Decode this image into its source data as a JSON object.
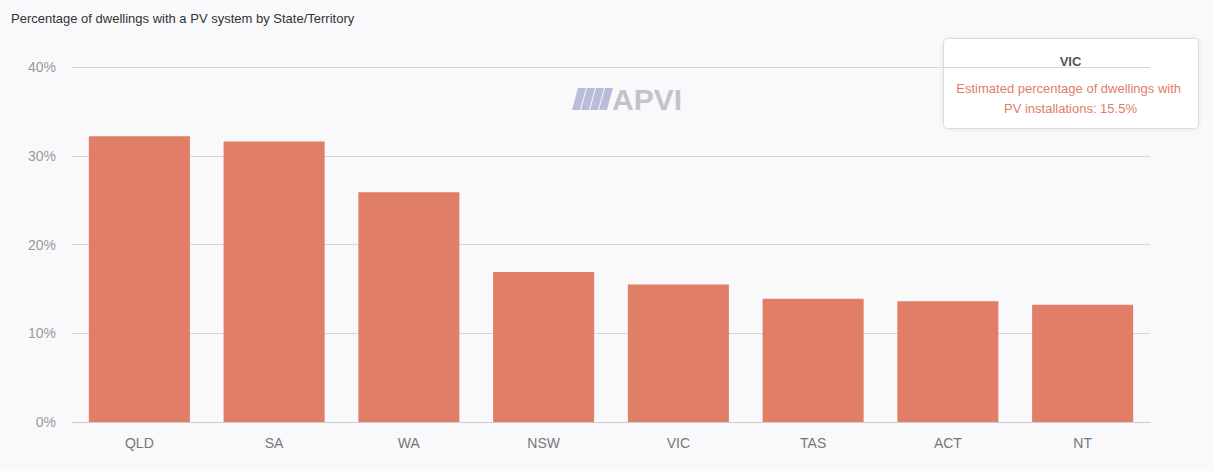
{
  "chart_data": {
    "type": "bar",
    "title": "Percentage of dwellings with a PV system by State/Territory",
    "categories": [
      "QLD",
      "SA",
      "WA",
      "NSW",
      "VIC",
      "TAS",
      "ACT",
      "NT"
    ],
    "values": [
      32.2,
      31.6,
      25.9,
      16.9,
      15.5,
      13.9,
      13.6,
      13.2
    ],
    "color": "#e07e67",
    "ylim": [
      0,
      40
    ],
    "yticks": [
      {
        "value": 0,
        "label": "0%"
      },
      {
        "value": 10,
        "label": "10%"
      },
      {
        "value": 20,
        "label": "20%"
      },
      {
        "value": 30,
        "label": "30%"
      },
      {
        "value": 40,
        "label": "40%"
      }
    ],
    "grid": true,
    "watermark": "APVI",
    "annotations": [
      {
        "title": "VIC",
        "text": "Estimated percentage of dwellings with PV installations: 15.5%"
      }
    ]
  }
}
